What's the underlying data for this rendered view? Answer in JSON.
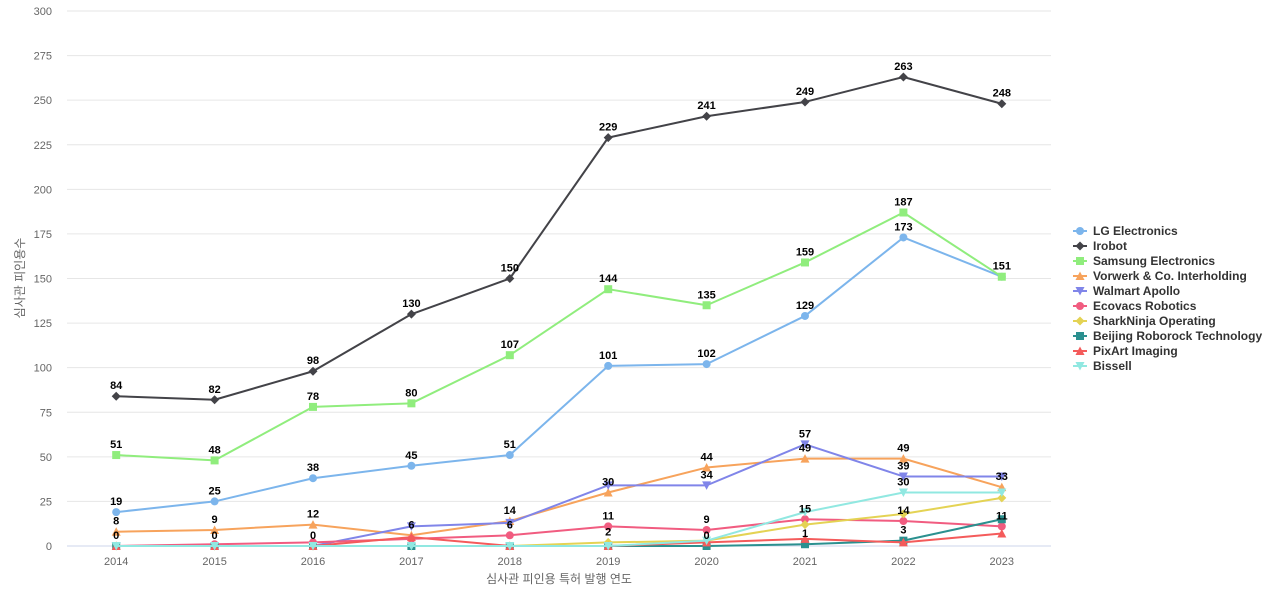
{
  "chart_data": {
    "type": "line",
    "xlabel": "심사관 피인용 특허 발행 연도",
    "ylabel": "심사관 피인용수",
    "x": [
      "2014",
      "2015",
      "2016",
      "2017",
      "2018",
      "2019",
      "2020",
      "2021",
      "2022",
      "2023"
    ],
    "ylim": [
      0,
      300
    ],
    "yticks": [
      0,
      25,
      50,
      75,
      100,
      125,
      150,
      175,
      200,
      225,
      250,
      275,
      300
    ],
    "grid": true,
    "legend_position": "right",
    "series": [
      {
        "name": "LG Electronics",
        "color": "#7cb5ec",
        "marker": "circle",
        "values": [
          19,
          25,
          38,
          45,
          51,
          101,
          102,
          129,
          173,
          151
        ]
      },
      {
        "name": "Irobot",
        "color": "#434348",
        "marker": "diamond",
        "values": [
          84,
          82,
          98,
          130,
          150,
          229,
          241,
          249,
          263,
          248
        ]
      },
      {
        "name": "Samsung Electronics",
        "color": "#90ed7d",
        "marker": "square",
        "values": [
          51,
          48,
          78,
          80,
          107,
          144,
          135,
          159,
          187,
          151
        ]
      },
      {
        "name": "Vorwerk & Co. Interholding",
        "color": "#f7a35c",
        "marker": "triangle",
        "values": [
          8,
          9,
          12,
          6,
          14,
          30,
          44,
          49,
          49,
          33
        ]
      },
      {
        "name": "Walmart Apollo",
        "color": "#8085e9",
        "marker": "triangle-down",
        "values": [
          0,
          0,
          0,
          11,
          13,
          34,
          34,
          57,
          39,
          39
        ]
      },
      {
        "name": "Ecovacs Robotics",
        "color": "#f15c80",
        "marker": "circle",
        "values": [
          0,
          1,
          2,
          4,
          6,
          11,
          9,
          15,
          14,
          11
        ]
      },
      {
        "name": "SharkNinja Operating",
        "color": "#e4d354",
        "marker": "diamond",
        "values": [
          0,
          0,
          0,
          0,
          0,
          2,
          3,
          12,
          18,
          27
        ]
      },
      {
        "name": "Beijing Roborock Technology",
        "color": "#2b908f",
        "marker": "square",
        "values": [
          0,
          0,
          0,
          0,
          0,
          0,
          0,
          1,
          3,
          15
        ]
      },
      {
        "name": "PixArt Imaging",
        "color": "#f45b5b",
        "marker": "triangle",
        "values": [
          0,
          0,
          0,
          5,
          0,
          0,
          2,
          4,
          2,
          7
        ]
      },
      {
        "name": "Bissell",
        "color": "#91e8e1",
        "marker": "triangle-down",
        "values": [
          0,
          0,
          0,
          0,
          0,
          0,
          3,
          19,
          30,
          30
        ]
      }
    ],
    "data_labels": [
      {
        "x": "2014",
        "y": 84,
        "text": "84"
      },
      {
        "x": "2015",
        "y": 82,
        "text": "82"
      },
      {
        "x": "2016",
        "y": 98,
        "text": "98"
      },
      {
        "x": "2017",
        "y": 130,
        "text": "130"
      },
      {
        "x": "2018",
        "y": 150,
        "text": "150"
      },
      {
        "x": "2019",
        "y": 229,
        "text": "229"
      },
      {
        "x": "2020",
        "y": 241,
        "text": "241"
      },
      {
        "x": "2021",
        "y": 249,
        "text": "249"
      },
      {
        "x": "2022",
        "y": 263,
        "text": "263"
      },
      {
        "x": "2023",
        "y": 248,
        "text": "248"
      },
      {
        "x": "2014",
        "y": 51,
        "text": "51"
      },
      {
        "x": "2015",
        "y": 48,
        "text": "48"
      },
      {
        "x": "2016",
        "y": 78,
        "text": "78"
      },
      {
        "x": "2017",
        "y": 80,
        "text": "80"
      },
      {
        "x": "2018",
        "y": 107,
        "text": "107"
      },
      {
        "x": "2019",
        "y": 144,
        "text": "144"
      },
      {
        "x": "2020",
        "y": 135,
        "text": "135"
      },
      {
        "x": "2021",
        "y": 159,
        "text": "159"
      },
      {
        "x": "2022",
        "y": 187,
        "text": "187"
      },
      {
        "x": "2014",
        "y": 19,
        "text": "19"
      },
      {
        "x": "2015",
        "y": 25,
        "text": "25"
      },
      {
        "x": "2016",
        "y": 38,
        "text": "38"
      },
      {
        "x": "2017",
        "y": 45,
        "text": "45"
      },
      {
        "x": "2018",
        "y": 51,
        "text": "51"
      },
      {
        "x": "2019",
        "y": 101,
        "text": "101"
      },
      {
        "x": "2020",
        "y": 102,
        "text": "102"
      },
      {
        "x": "2021",
        "y": 129,
        "text": "129"
      },
      {
        "x": "2022",
        "y": 173,
        "text": "173"
      },
      {
        "x": "2023",
        "y": 151,
        "text": "151"
      },
      {
        "x": "2014",
        "y": 8,
        "text": "8"
      },
      {
        "x": "2015",
        "y": 9,
        "text": "9"
      },
      {
        "x": "2016",
        "y": 12,
        "text": "12"
      },
      {
        "x": "2018",
        "y": 14,
        "text": "14"
      },
      {
        "x": "2019",
        "y": 30,
        "text": "30"
      },
      {
        "x": "2020",
        "y": 44,
        "text": "44"
      },
      {
        "x": "2021",
        "y": 49,
        "text": "49"
      },
      {
        "x": "2022",
        "y": 49,
        "text": "49"
      },
      {
        "x": "2023",
        "y": 33,
        "text": "33"
      },
      {
        "x": "2021",
        "y": 57,
        "text": "57"
      },
      {
        "x": "2022",
        "y": 39,
        "text": "39"
      },
      {
        "x": "2020",
        "y": 34,
        "text": "34"
      },
      {
        "x": "2022",
        "y": 30,
        "text": "30"
      },
      {
        "x": "2021",
        "y": 15,
        "text": "15"
      },
      {
        "x": "2022",
        "y": 14,
        "text": "14"
      },
      {
        "x": "2019",
        "y": 11,
        "text": "11"
      },
      {
        "x": "2020",
        "y": 9,
        "text": "9"
      },
      {
        "x": "2023",
        "y": 11,
        "text": "11"
      },
      {
        "x": "2017",
        "y": 6,
        "text": "6"
      },
      {
        "x": "2018",
        "y": 6,
        "text": "6"
      },
      {
        "x": "2019",
        "y": 2,
        "text": "2"
      },
      {
        "x": "2021",
        "y": 1,
        "text": "1"
      },
      {
        "x": "2022",
        "y": 3,
        "text": "3"
      },
      {
        "x": "2014",
        "y": 0,
        "text": "0"
      },
      {
        "x": "2015",
        "y": 0,
        "text": "0"
      },
      {
        "x": "2016",
        "y": 0,
        "text": "0"
      },
      {
        "x": "2020",
        "y": 0,
        "text": "0"
      }
    ]
  }
}
